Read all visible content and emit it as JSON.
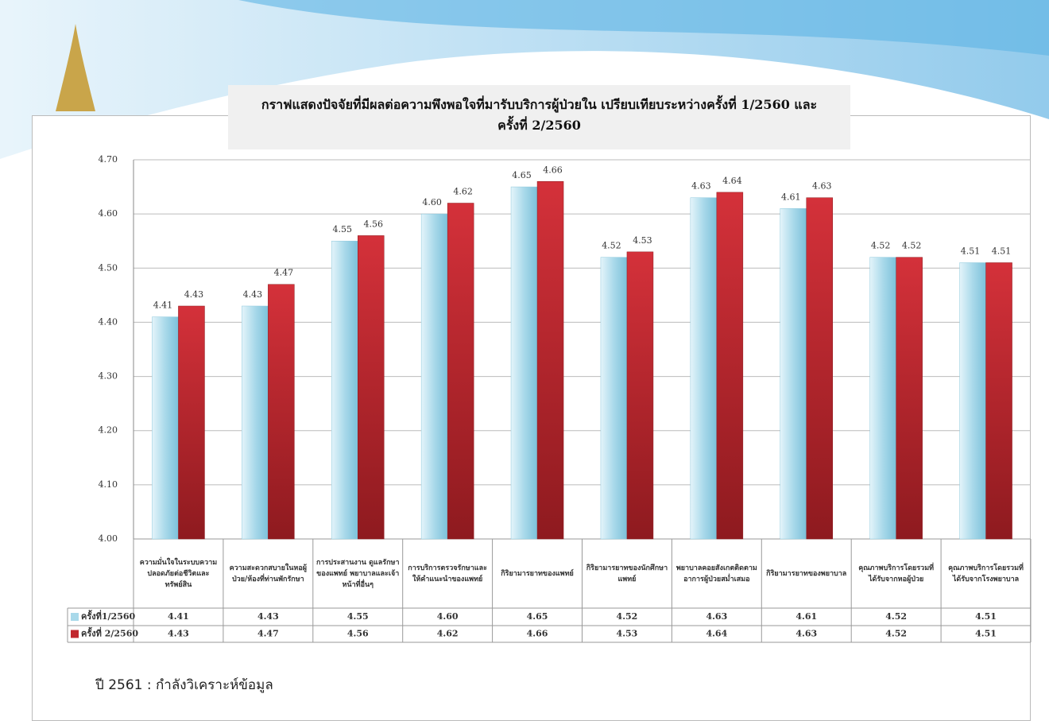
{
  "chart_data": {
    "type": "bar",
    "title": "กราฟแสดงปัจจัยที่มีผลต่อความพึงพอใจที่มารับบริการผู้ป่วยใน  เปรียบเทียบระหว่างครั้งที่ 1/2560 และครั้งที่ 2/2560",
    "categories": [
      "ความมั่นใจในระบบความปลอดภัยต่อชีวิตและทรัพย์สิน",
      "ความสะดวกสบายในหอผู้ป่วย/ห้องที่ท่านพักรักษา",
      "การประสานงาน ดูแลรักษาของแพทย์ พยาบาลและเจ้าหน้าที่อื่นๆ",
      "การบริการตรวจรักษาและให้คำแนะนำของแพทย์",
      "กิริยามารยาทของแพทย์",
      "กิริยามารยาทของนักศึกษาแพทย์",
      "พยาบาลคอยสังเกตติดตามอาการผู้ป่วยสม่ำเสมอ",
      "กิริยามารยาทของพยาบาล",
      "คุณภาพบริการโดยรวมที่ได้รับจากหอผู้ป่วย",
      "คุณภาพบริการโดยรวมที่ได้รับจากโรงพยาบาล"
    ],
    "series": [
      {
        "name": "ครั้งที่1/2560",
        "color": "#a9d9ea",
        "values": [
          4.41,
          4.43,
          4.55,
          4.6,
          4.65,
          4.52,
          4.63,
          4.61,
          4.52,
          4.51
        ],
        "value_labels": [
          "4.41",
          "4.43",
          "4.55",
          "4.60",
          "4.65",
          "4.52",
          "4.63",
          "4.61",
          "4.52",
          "4.51"
        ]
      },
      {
        "name": "ครั้งที่ 2/2560",
        "color": "#c1272d",
        "values": [
          4.43,
          4.47,
          4.56,
          4.62,
          4.66,
          4.53,
          4.64,
          4.63,
          4.52,
          4.51
        ],
        "value_labels": [
          "4.43",
          "4.47",
          "4.56",
          "4.62",
          "4.66",
          "4.53",
          "4.64",
          "4.63",
          "4.52",
          "4.51"
        ]
      }
    ],
    "ylim": [
      4.0,
      4.7
    ],
    "yticks": [
      {
        "value": 4.0,
        "label": "4.00"
      },
      {
        "value": 4.1,
        "label": "4.10"
      },
      {
        "value": 4.2,
        "label": "4.20"
      },
      {
        "value": 4.3,
        "label": "4.30"
      },
      {
        "value": 4.4,
        "label": "4.40"
      },
      {
        "value": 4.5,
        "label": "4.50"
      },
      {
        "value": 4.6,
        "label": "4.60"
      },
      {
        "value": 4.7,
        "label": "4.70"
      }
    ],
    "grid": true
  },
  "footer": "ปี 2561 : กำลังวิเคราะห์ข้อมูล"
}
